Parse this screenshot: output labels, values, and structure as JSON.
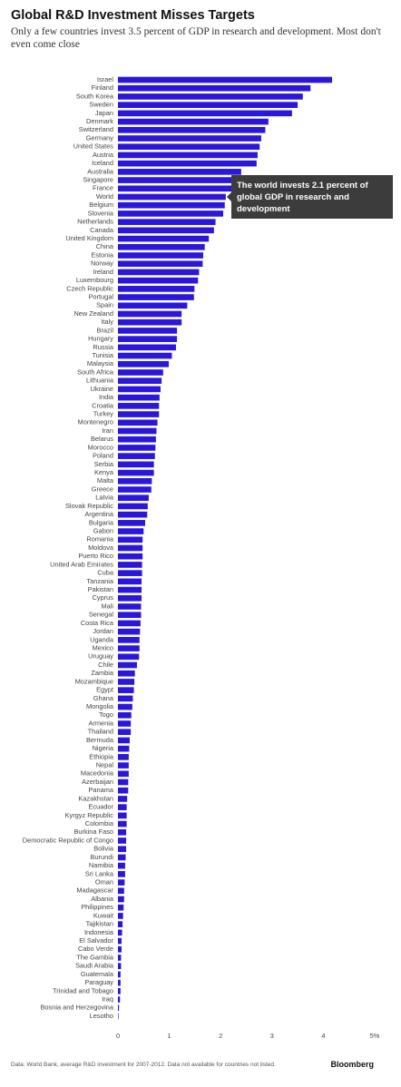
{
  "chart_data": {
    "type": "bar",
    "orientation": "horizontal",
    "title": "Global R&D Investment Misses Targets",
    "subtitle": "Only a few countries invest 3.5 percent of GDP in research and development. Most don't even come close",
    "annotation": "The world invests 2.1 percent of global GDP in research and development",
    "source": "Data: World Bank, average R&D investment for 2007-2012. Data not available for countries not listed.",
    "brand": "Bloomberg",
    "color": "#2b17d9",
    "grid": false,
    "xlim": [
      0,
      5
    ],
    "xticks": [
      0,
      1,
      2,
      3,
      4,
      {
        "value": 5,
        "label": "5%"
      }
    ],
    "categories": [
      "Israel",
      "Finland",
      "South Korea",
      "Sweden",
      "Japan",
      "Denmark",
      "Switzerland",
      "Germany",
      "United States",
      "Austria",
      "Iceland",
      "Australia",
      "Singapore",
      "France",
      "World",
      "Belgium",
      "Slovenia",
      "Netherlands",
      "Canada",
      "United Kingdom",
      "China",
      "Estonia",
      "Norway",
      "Ireland",
      "Luxembourg",
      "Czech Republic",
      "Portugal",
      "Spain",
      "New Zealand",
      "Italy",
      "Brazil",
      "Hungary",
      "Russia",
      "Tunisia",
      "Malaysia",
      "South Africa",
      "Lithuania",
      "Ukraine",
      "India",
      "Croatia",
      "Turkey",
      "Montenegro",
      "Iran",
      "Belarus",
      "Morocco",
      "Poland",
      "Serbia",
      "Kenya",
      "Malta",
      "Greece",
      "Latvia",
      "Slovak Republic",
      "Argentina",
      "Bulgaria",
      "Gabon",
      "Romania",
      "Moldova",
      "Puerto Rico",
      "United Arab Emirates",
      "Cuba",
      "Tanzania",
      "Pakistan",
      "Cyprus",
      "Mali",
      "Senegal",
      "Costa Rica",
      "Jordan",
      "Uganda",
      "Mexico",
      "Uruguay",
      "Chile",
      "Zambia",
      "Mozambique",
      "Egypt",
      "Ghana",
      "Mongolia",
      "Togo",
      "Armenia",
      "Thailand",
      "Bermuda",
      "Nigeria",
      "Ethiopia",
      "Nepal",
      "Macedonia",
      "Azerbaijan",
      "Panama",
      "Kazakhstan",
      "Ecuador",
      "Kyrgyz Republic",
      "Colombia",
      "Burkina Faso",
      "Democratic Republic of Congo",
      "Bolivia",
      "Burundi",
      "Namibia",
      "Sri Lanka",
      "Oman",
      "Madagascar",
      "Albania",
      "Philippines",
      "Kuwait",
      "Tajikistan",
      "Indonesia",
      "El Salvador",
      "Cabo Verde",
      "The Gambia",
      "Saudi Arabia",
      "Guatemala",
      "Paraguay",
      "Trinidad and Tobago",
      "Iraq",
      "Bosnia and Herzegovina",
      "Lesotho"
    ],
    "values": [
      4.17,
      3.75,
      3.6,
      3.5,
      3.39,
      2.93,
      2.87,
      2.79,
      2.76,
      2.72,
      2.7,
      2.4,
      2.3,
      2.25,
      2.1,
      2.08,
      2.05,
      1.9,
      1.87,
      1.77,
      1.69,
      1.66,
      1.65,
      1.58,
      1.56,
      1.49,
      1.48,
      1.35,
      1.24,
      1.24,
      1.15,
      1.15,
      1.13,
      1.05,
      0.99,
      0.88,
      0.85,
      0.83,
      0.81,
      0.8,
      0.8,
      0.77,
      0.75,
      0.74,
      0.73,
      0.72,
      0.7,
      0.7,
      0.66,
      0.65,
      0.6,
      0.58,
      0.57,
      0.53,
      0.5,
      0.48,
      0.48,
      0.48,
      0.47,
      0.47,
      0.46,
      0.46,
      0.46,
      0.45,
      0.45,
      0.44,
      0.43,
      0.42,
      0.42,
      0.41,
      0.37,
      0.33,
      0.32,
      0.31,
      0.29,
      0.28,
      0.26,
      0.25,
      0.25,
      0.23,
      0.22,
      0.21,
      0.21,
      0.21,
      0.2,
      0.2,
      0.18,
      0.17,
      0.17,
      0.17,
      0.16,
      0.16,
      0.16,
      0.15,
      0.14,
      0.14,
      0.13,
      0.12,
      0.12,
      0.11,
      0.1,
      0.09,
      0.08,
      0.07,
      0.07,
      0.06,
      0.06,
      0.05,
      0.05,
      0.05,
      0.04,
      0.02,
      0.01
    ]
  }
}
